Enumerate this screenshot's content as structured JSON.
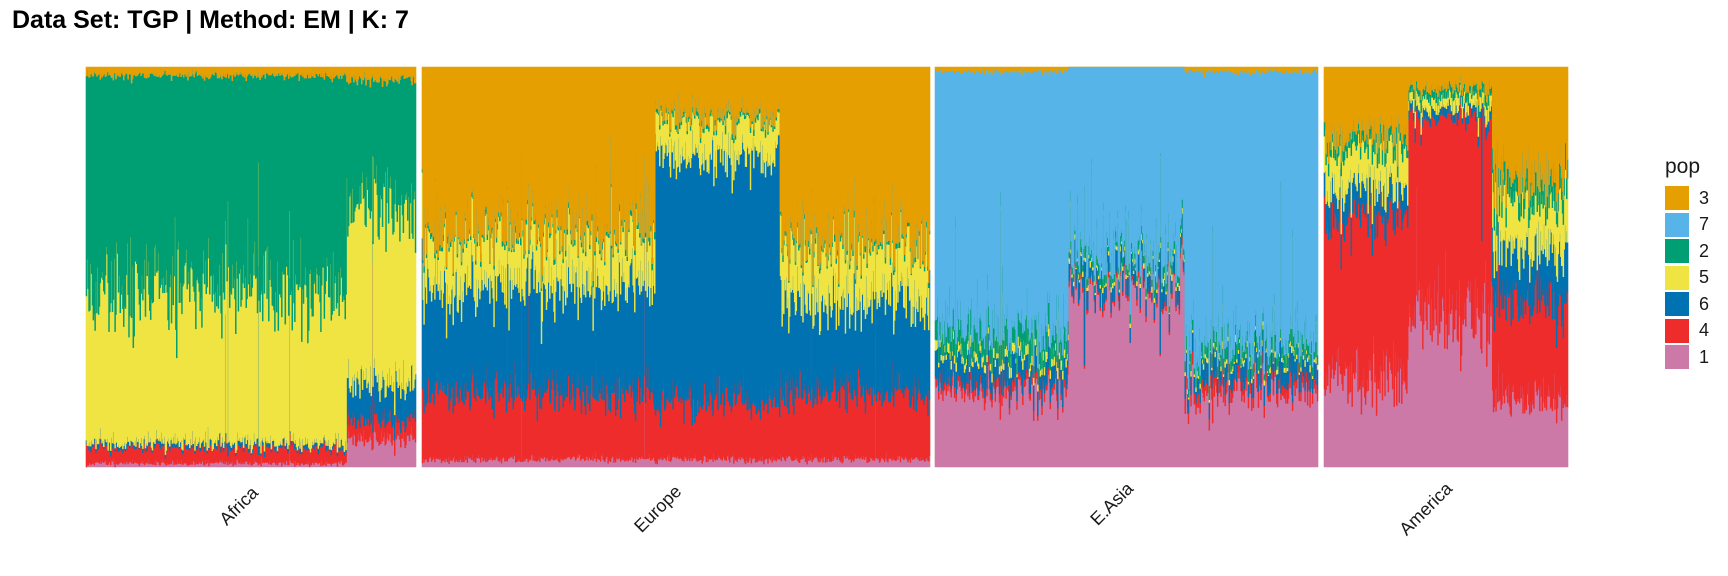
{
  "chart_data": {
    "type": "bar",
    "subtype": "stacked admixture proportions (one bar per individual, normalized to 1)",
    "title": "Data Set: TGP | Method: EM | K: 7",
    "xlabel": "",
    "ylabel": "",
    "ylim": [
      0,
      1
    ],
    "grid": false,
    "legend": {
      "title": "pop",
      "position": "right",
      "order": [
        "3",
        "7",
        "2",
        "5",
        "6",
        "4",
        "1"
      ]
    },
    "stack_order_bottom_to_top": [
      "1",
      "4",
      "6",
      "5",
      "2",
      "7",
      "3"
    ],
    "colors": {
      "1": "#CC79A7",
      "2": "#009E73",
      "3": "#E69F00",
      "4": "#EE2C2C",
      "5": "#F0E442",
      "6": "#0072B2",
      "7": "#56B4E9"
    },
    "facets": [
      {
        "label": "Africa",
        "segments": [
          {
            "n": 300,
            "mean": {
              "1": 0.01,
              "4": 0.04,
              "6": 0.01,
              "5": 0.39,
              "2": 0.53,
              "7": 0.0,
              "3": 0.02
            }
          },
          {
            "n": 80,
            "mean": {
              "1": 0.07,
              "4": 0.05,
              "6": 0.09,
              "5": 0.44,
              "2": 0.32,
              "7": 0.0,
              "3": 0.03
            }
          }
        ]
      },
      {
        "label": "Europe",
        "segments": [
          {
            "n": 280,
            "mean": {
              "1": 0.02,
              "4": 0.17,
              "6": 0.27,
              "5": 0.13,
              "2": 0.01,
              "7": 0.0,
              "3": 0.4
            }
          },
          {
            "n": 150,
            "mean": {
              "1": 0.02,
              "4": 0.15,
              "6": 0.61,
              "5": 0.09,
              "2": 0.01,
              "7": 0.0,
              "3": 0.12
            }
          },
          {
            "n": 180,
            "mean": {
              "1": 0.02,
              "4": 0.17,
              "6": 0.23,
              "5": 0.14,
              "2": 0.01,
              "7": 0.0,
              "3": 0.43
            }
          }
        ]
      },
      {
        "label": "E.Asia",
        "segments": [
          {
            "n": 160,
            "mean": {
              "1": 0.2,
              "4": 0.02,
              "6": 0.06,
              "5": 0.02,
              "2": 0.05,
              "7": 0.64,
              "3": 0.01
            }
          },
          {
            "n": 140,
            "mean": {
              "1": 0.46,
              "4": 0.01,
              "6": 0.04,
              "5": 0.01,
              "2": 0.02,
              "7": 0.46,
              "3": 0.0
            }
          },
          {
            "n": 160,
            "mean": {
              "1": 0.19,
              "4": 0.03,
              "6": 0.05,
              "5": 0.01,
              "2": 0.03,
              "7": 0.68,
              "3": 0.01
            }
          }
        ]
      },
      {
        "label": "America",
        "segments": [
          {
            "n": 100,
            "mean": {
              "1": 0.23,
              "4": 0.4,
              "6": 0.07,
              "5": 0.1,
              "2": 0.03,
              "7": 0.0,
              "3": 0.17
            }
          },
          {
            "n": 100,
            "mean": {
              "1": 0.4,
              "4": 0.48,
              "6": 0.02,
              "5": 0.03,
              "2": 0.02,
              "7": 0.0,
              "3": 0.05
            }
          },
          {
            "n": 90,
            "mean": {
              "1": 0.17,
              "4": 0.25,
              "6": 0.13,
              "5": 0.13,
              "2": 0.05,
              "7": 0.0,
              "3": 0.27
            }
          }
        ]
      }
    ]
  }
}
